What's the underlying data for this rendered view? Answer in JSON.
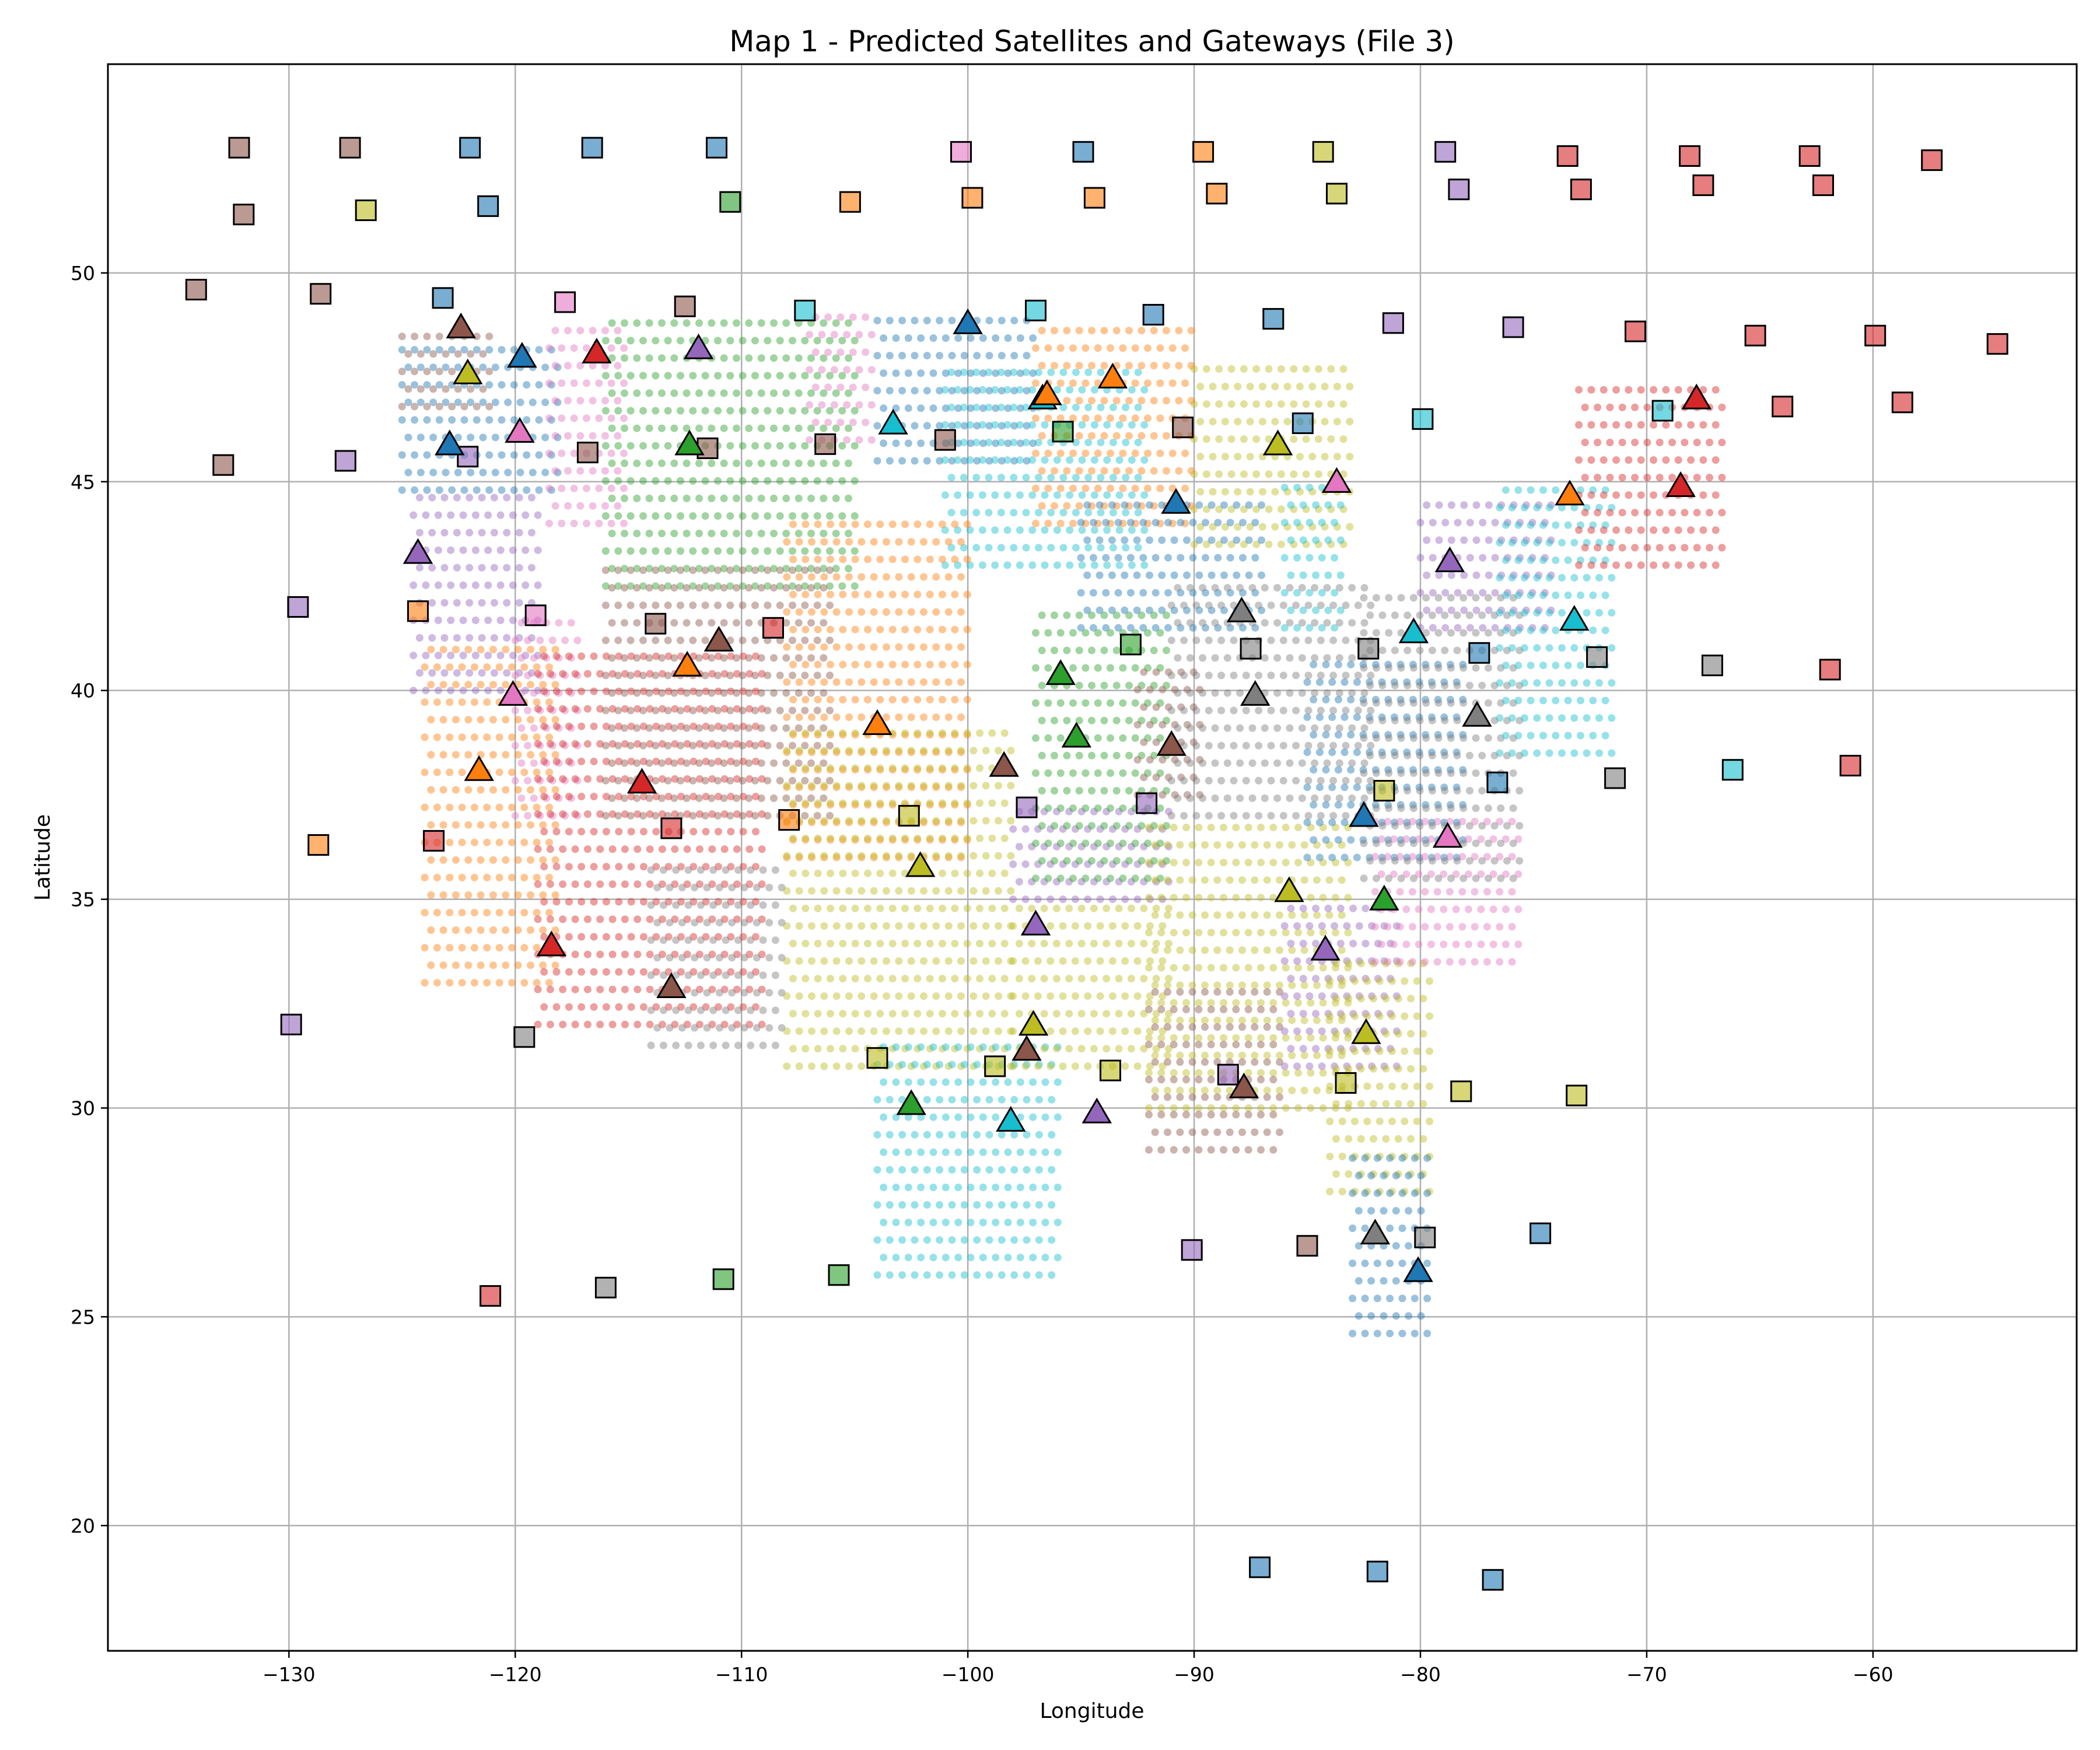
{
  "chart_data": {
    "type": "scatter",
    "title": "Map 1 - Predicted Satellites and Gateways (File 3)",
    "xlabel": "Longitude",
    "ylabel": "Latitude",
    "xlim": [
      -138,
      -51
    ],
    "ylim": [
      17,
      55
    ],
    "xticks": [
      -130,
      -120,
      -110,
      -100,
      -90,
      -80,
      -70,
      -60
    ],
    "yticks": [
      20,
      25,
      30,
      35,
      40,
      45,
      50
    ],
    "grid": true,
    "palette": {
      "blue": "#1f77b4",
      "orange": "#ff7f0e",
      "green": "#2ca02c",
      "red": "#d62728",
      "purple": "#9467bd",
      "brown": "#8c564b",
      "pink": "#e377c2",
      "gray": "#7f7f7f",
      "olive": "#bcbd22",
      "cyan": "#17becf"
    },
    "regions": [
      {
        "c": "brown",
        "lon": [
          -125,
          -121
        ],
        "lat": [
          46.8,
          48.8
        ]
      },
      {
        "c": "blue",
        "lon": [
          -125,
          -118
        ],
        "lat": [
          44.8,
          48.3
        ]
      },
      {
        "c": "pink",
        "lon": [
          -118.5,
          -115
        ],
        "lat": [
          44,
          49
        ]
      },
      {
        "c": "green",
        "lon": [
          -116,
          -105
        ],
        "lat": [
          42.5,
          49
        ]
      },
      {
        "c": "pink",
        "lon": [
          -107,
          -104
        ],
        "lat": [
          46,
          49
        ]
      },
      {
        "c": "blue",
        "lon": [
          -104,
          -97
        ],
        "lat": [
          45.5,
          49
        ]
      },
      {
        "c": "cyan",
        "lon": [
          -101,
          -92
        ],
        "lat": [
          43,
          48
        ]
      },
      {
        "c": "orange",
        "lon": [
          -97,
          -90
        ],
        "lat": [
          44,
          49
        ]
      },
      {
        "c": "olive",
        "lon": [
          -90,
          -83
        ],
        "lat": [
          43.5,
          48
        ]
      },
      {
        "c": "blue",
        "lon": [
          -95,
          -87
        ],
        "lat": [
          41.5,
          44.5
        ]
      },
      {
        "c": "cyan",
        "lon": [
          -86,
          -83.5
        ],
        "lat": [
          41.5,
          45
        ]
      },
      {
        "c": "purple",
        "lon": [
          -124.5,
          -119
        ],
        "lat": [
          40,
          45
        ]
      },
      {
        "c": "pink",
        "lon": [
          -120,
          -117
        ],
        "lat": [
          37,
          42
        ]
      },
      {
        "c": "orange",
        "lon": [
          -124,
          -118
        ],
        "lat": [
          33,
          41
        ]
      },
      {
        "c": "red",
        "lon": [
          -119,
          -109
        ],
        "lat": [
          32,
          41
        ]
      },
      {
        "c": "brown",
        "lon": [
          -116,
          -106
        ],
        "lat": [
          37,
          43
        ]
      },
      {
        "c": "gray",
        "lon": [
          -114,
          -108
        ],
        "lat": [
          31.5,
          36
        ]
      },
      {
        "c": "orange",
        "lon": [
          -108,
          -100
        ],
        "lat": [
          36,
          44
        ]
      },
      {
        "c": "olive",
        "lon": [
          -108,
          -98
        ],
        "lat": [
          31,
          39
        ]
      },
      {
        "c": "cyan",
        "lon": [
          -104,
          -96
        ],
        "lat": [
          26,
          31.5
        ]
      },
      {
        "c": "olive",
        "lon": [
          -98,
          -91
        ],
        "lat": [
          31,
          35
        ]
      },
      {
        "c": "purple",
        "lon": [
          -98,
          -91
        ],
        "lat": [
          35,
          37.5
        ]
      },
      {
        "c": "green",
        "lon": [
          -97,
          -91
        ],
        "lat": [
          35.5,
          42
        ]
      },
      {
        "c": "brown",
        "lon": [
          -92.5,
          -89.5
        ],
        "lat": [
          37.5,
          40.5
        ]
      },
      {
        "c": "gray",
        "lon": [
          -91,
          -82
        ],
        "lat": [
          37,
          42.5
        ]
      },
      {
        "c": "olive",
        "lon": [
          -92,
          -83
        ],
        "lat": [
          30,
          37
        ]
      },
      {
        "c": "brown",
        "lon": [
          -92,
          -86
        ],
        "lat": [
          29,
          33
        ]
      },
      {
        "c": "purple",
        "lon": [
          -86,
          -81
        ],
        "lat": [
          31,
          35
        ]
      },
      {
        "c": "olive",
        "lon": [
          -84,
          -79.5
        ],
        "lat": [
          28,
          33.5
        ]
      },
      {
        "c": "blue",
        "lon": [
          -83,
          -79.5
        ],
        "lat": [
          24.6,
          28.8
        ]
      },
      {
        "c": "blue",
        "lon": [
          -85,
          -78
        ],
        "lat": [
          36,
          41
        ]
      },
      {
        "c": "pink",
        "lon": [
          -82,
          -75.5
        ],
        "lat": [
          33.5,
          37
        ]
      },
      {
        "c": "gray",
        "lon": [
          -82.5,
          -75.5
        ],
        "lat": [
          35.5,
          42.5
        ]
      },
      {
        "c": "purple",
        "lon": [
          -80,
          -74
        ],
        "lat": [
          41.5,
          44.5
        ]
      },
      {
        "c": "cyan",
        "lon": [
          -76.5,
          -71.5
        ],
        "lat": [
          38.5,
          45
        ]
      },
      {
        "c": "red",
        "lon": [
          -73,
          -66.5
        ],
        "lat": [
          43,
          47.5
        ]
      }
    ],
    "satellites": [
      {
        "c": "brown",
        "x": -122.4,
        "y": 48.7
      },
      {
        "c": "olive",
        "x": -122.1,
        "y": 47.6
      },
      {
        "c": "blue",
        "x": -119.7,
        "y": 48
      },
      {
        "c": "red",
        "x": -116.4,
        "y": 48.1
      },
      {
        "c": "purple",
        "x": -111.9,
        "y": 48.2
      },
      {
        "c": "blue",
        "x": -122.9,
        "y": 45.9
      },
      {
        "c": "pink",
        "x": -119.8,
        "y": 46.2
      },
      {
        "c": "green",
        "x": -112.3,
        "y": 45.9
      },
      {
        "c": "blue",
        "x": -100,
        "y": 48.8
      },
      {
        "c": "cyan",
        "x": -103.3,
        "y": 46.4
      },
      {
        "c": "cyan",
        "x": -96.7,
        "y": 47
      },
      {
        "c": "orange",
        "x": -96.5,
        "y": 47.1
      },
      {
        "c": "orange",
        "x": -93.6,
        "y": 47.5
      },
      {
        "c": "blue",
        "x": -90.8,
        "y": 44.5
      },
      {
        "c": "olive",
        "x": -86.3,
        "y": 45.9
      },
      {
        "c": "pink",
        "x": -83.7,
        "y": 45
      },
      {
        "c": "red",
        "x": -67.8,
        "y": 47
      },
      {
        "c": "red",
        "x": -68.5,
        "y": 44.9
      },
      {
        "c": "orange",
        "x": -73.4,
        "y": 44.7
      },
      {
        "c": "purple",
        "x": -124.3,
        "y": 43.3
      },
      {
        "c": "purple",
        "x": -78.7,
        "y": 43.1
      },
      {
        "c": "cyan",
        "x": -73.2,
        "y": 41.7
      },
      {
        "c": "cyan",
        "x": -80.3,
        "y": 41.4
      },
      {
        "c": "gray",
        "x": -87.9,
        "y": 41.9
      },
      {
        "c": "gray",
        "x": -87.3,
        "y": 39.9
      },
      {
        "c": "gray",
        "x": -77.5,
        "y": 39.4
      },
      {
        "c": "brown",
        "x": -111,
        "y": 41.2
      },
      {
        "c": "orange",
        "x": -112.4,
        "y": 40.6
      },
      {
        "c": "pink",
        "x": -120.1,
        "y": 39.9
      },
      {
        "c": "green",
        "x": -95.9,
        "y": 40.4
      },
      {
        "c": "green",
        "x": -95.2,
        "y": 38.9
      },
      {
        "c": "brown",
        "x": -91,
        "y": 38.7
      },
      {
        "c": "orange",
        "x": -104,
        "y": 39.2
      },
      {
        "c": "orange",
        "x": -121.6,
        "y": 38.1
      },
      {
        "c": "red",
        "x": -114.4,
        "y": 37.8
      },
      {
        "c": "brown",
        "x": -98.4,
        "y": 38.2
      },
      {
        "c": "blue",
        "x": -82.5,
        "y": 37
      },
      {
        "c": "pink",
        "x": -78.8,
        "y": 36.5
      },
      {
        "c": "olive",
        "x": -102.1,
        "y": 35.8
      },
      {
        "c": "olive",
        "x": -85.8,
        "y": 35.2
      },
      {
        "c": "green",
        "x": -81.6,
        "y": 35
      },
      {
        "c": "purple",
        "x": -97,
        "y": 34.4
      },
      {
        "c": "purple",
        "x": -84.2,
        "y": 33.8
      },
      {
        "c": "red",
        "x": -118.4,
        "y": 33.9
      },
      {
        "c": "brown",
        "x": -113.1,
        "y": 32.9
      },
      {
        "c": "olive",
        "x": -97.1,
        "y": 32
      },
      {
        "c": "brown",
        "x": -97.4,
        "y": 31.4
      },
      {
        "c": "olive",
        "x": -82.4,
        "y": 31.8
      },
      {
        "c": "green",
        "x": -102.5,
        "y": 30.1
      },
      {
        "c": "cyan",
        "x": -98.1,
        "y": 29.7
      },
      {
        "c": "purple",
        "x": -94.3,
        "y": 29.9
      },
      {
        "c": "brown",
        "x": -87.8,
        "y": 30.5
      },
      {
        "c": "gray",
        "x": -82,
        "y": 27
      },
      {
        "c": "blue",
        "x": -80.1,
        "y": 26.1
      }
    ],
    "gateways": [
      {
        "c": "brown",
        "x": -132.2,
        "y": 53
      },
      {
        "c": "brown",
        "x": -127.3,
        "y": 53
      },
      {
        "c": "blue",
        "x": -122,
        "y": 53
      },
      {
        "c": "blue",
        "x": -116.6,
        "y": 53
      },
      {
        "c": "blue",
        "x": -111.1,
        "y": 53
      },
      {
        "c": "pink",
        "x": -100.3,
        "y": 52.9
      },
      {
        "c": "blue",
        "x": -94.9,
        "y": 52.9
      },
      {
        "c": "orange",
        "x": -89.6,
        "y": 52.9
      },
      {
        "c": "olive",
        "x": -84.3,
        "y": 52.9
      },
      {
        "c": "purple",
        "x": -78.9,
        "y": 52.9
      },
      {
        "c": "red",
        "x": -73.5,
        "y": 52.8
      },
      {
        "c": "red",
        "x": -68.1,
        "y": 52.8
      },
      {
        "c": "red",
        "x": -62.8,
        "y": 52.8
      },
      {
        "c": "red",
        "x": -57.4,
        "y": 52.7
      },
      {
        "c": "brown",
        "x": -132,
        "y": 51.4
      },
      {
        "c": "olive",
        "x": -126.6,
        "y": 51.5
      },
      {
        "c": "blue",
        "x": -121.2,
        "y": 51.6
      },
      {
        "c": "green",
        "x": -110.5,
        "y": 51.7
      },
      {
        "c": "orange",
        "x": -105.2,
        "y": 51.7
      },
      {
        "c": "orange",
        "x": -99.8,
        "y": 51.8
      },
      {
        "c": "orange",
        "x": -94.4,
        "y": 51.8
      },
      {
        "c": "orange",
        "x": -89,
        "y": 51.9
      },
      {
        "c": "olive",
        "x": -83.7,
        "y": 51.9
      },
      {
        "c": "purple",
        "x": -78.3,
        "y": 52
      },
      {
        "c": "red",
        "x": -72.9,
        "y": 52
      },
      {
        "c": "red",
        "x": -67.5,
        "y": 52.1
      },
      {
        "c": "red",
        "x": -62.2,
        "y": 52.1
      },
      {
        "c": "brown",
        "x": -134.1,
        "y": 49.6
      },
      {
        "c": "brown",
        "x": -128.6,
        "y": 49.5
      },
      {
        "c": "blue",
        "x": -123.2,
        "y": 49.4
      },
      {
        "c": "pink",
        "x": -117.8,
        "y": 49.3
      },
      {
        "c": "brown",
        "x": -112.5,
        "y": 49.2
      },
      {
        "c": "cyan",
        "x": -107.2,
        "y": 49.1
      },
      {
        "c": "cyan",
        "x": -97,
        "y": 49.1
      },
      {
        "c": "blue",
        "x": -91.8,
        "y": 49
      },
      {
        "c": "blue",
        "x": -86.5,
        "y": 48.9
      },
      {
        "c": "purple",
        "x": -81.2,
        "y": 48.8
      },
      {
        "c": "purple",
        "x": -75.9,
        "y": 48.7
      },
      {
        "c": "red",
        "x": -70.5,
        "y": 48.6
      },
      {
        "c": "red",
        "x": -65.2,
        "y": 48.5
      },
      {
        "c": "red",
        "x": -59.9,
        "y": 48.5
      },
      {
        "c": "red",
        "x": -54.5,
        "y": 48.3
      },
      {
        "c": "brown",
        "x": -132.9,
        "y": 45.4
      },
      {
        "c": "purple",
        "x": -127.5,
        "y": 45.5
      },
      {
        "c": "purple",
        "x": -122.1,
        "y": 45.6
      },
      {
        "c": "brown",
        "x": -116.8,
        "y": 45.7
      },
      {
        "c": "brown",
        "x": -111.5,
        "y": 45.8
      },
      {
        "c": "brown",
        "x": -106.3,
        "y": 45.9
      },
      {
        "c": "brown",
        "x": -101,
        "y": 46
      },
      {
        "c": "green",
        "x": -95.8,
        "y": 46.2
      },
      {
        "c": "brown",
        "x": -90.5,
        "y": 46.3
      },
      {
        "c": "blue",
        "x": -85.2,
        "y": 46.4
      },
      {
        "c": "cyan",
        "x": -79.9,
        "y": 46.5
      },
      {
        "c": "cyan",
        "x": -69.3,
        "y": 46.7
      },
      {
        "c": "red",
        "x": -64,
        "y": 46.8
      },
      {
        "c": "red",
        "x": -58.7,
        "y": 46.9
      },
      {
        "c": "purple",
        "x": -129.6,
        "y": 42
      },
      {
        "c": "orange",
        "x": -124.3,
        "y": 41.9
      },
      {
        "c": "pink",
        "x": -119.1,
        "y": 41.8
      },
      {
        "c": "brown",
        "x": -113.8,
        "y": 41.6
      },
      {
        "c": "red",
        "x": -108.6,
        "y": 41.5
      },
      {
        "c": "green",
        "x": -92.8,
        "y": 41.1
      },
      {
        "c": "gray",
        "x": -87.5,
        "y": 41
      },
      {
        "c": "gray",
        "x": -82.3,
        "y": 41
      },
      {
        "c": "blue",
        "x": -77.4,
        "y": 40.9
      },
      {
        "c": "gray",
        "x": -72.2,
        "y": 40.8
      },
      {
        "c": "gray",
        "x": -67.1,
        "y": 40.6
      },
      {
        "c": "red",
        "x": -61.9,
        "y": 40.5
      },
      {
        "c": "orange",
        "x": -128.7,
        "y": 36.3
      },
      {
        "c": "red",
        "x": -123.6,
        "y": 36.4
      },
      {
        "c": "red",
        "x": -113.1,
        "y": 36.7
      },
      {
        "c": "orange",
        "x": -107.9,
        "y": 36.9
      },
      {
        "c": "olive",
        "x": -102.6,
        "y": 37
      },
      {
        "c": "purple",
        "x": -97.4,
        "y": 37.2
      },
      {
        "c": "purple",
        "x": -92.1,
        "y": 37.3
      },
      {
        "c": "olive",
        "x": -81.6,
        "y": 37.6
      },
      {
        "c": "blue",
        "x": -76.6,
        "y": 37.8
      },
      {
        "c": "gray",
        "x": -71.4,
        "y": 37.9
      },
      {
        "c": "cyan",
        "x": -66.2,
        "y": 38.1
      },
      {
        "c": "red",
        "x": -61,
        "y": 38.2
      },
      {
        "c": "purple",
        "x": -129.9,
        "y": 32
      },
      {
        "c": "gray",
        "x": -119.6,
        "y": 31.7
      },
      {
        "c": "olive",
        "x": -104,
        "y": 31.2
      },
      {
        "c": "olive",
        "x": -98.8,
        "y": 31
      },
      {
        "c": "olive",
        "x": -93.7,
        "y": 30.9
      },
      {
        "c": "purple",
        "x": -88.5,
        "y": 30.8
      },
      {
        "c": "olive",
        "x": -83.3,
        "y": 30.6
      },
      {
        "c": "olive",
        "x": -78.2,
        "y": 30.4
      },
      {
        "c": "olive",
        "x": -73.1,
        "y": 30.3
      },
      {
        "c": "red",
        "x": -121.1,
        "y": 25.5
      },
      {
        "c": "gray",
        "x": -116,
        "y": 25.7
      },
      {
        "c": "green",
        "x": -110.8,
        "y": 25.9
      },
      {
        "c": "green",
        "x": -105.7,
        "y": 26
      },
      {
        "c": "purple",
        "x": -90.1,
        "y": 26.6
      },
      {
        "c": "brown",
        "x": -85,
        "y": 26.7
      },
      {
        "c": "gray",
        "x": -79.8,
        "y": 26.9
      },
      {
        "c": "blue",
        "x": -74.7,
        "y": 27
      },
      {
        "c": "blue",
        "x": -87.1,
        "y": 19
      },
      {
        "c": "blue",
        "x": -81.9,
        "y": 18.9
      },
      {
        "c": "blue",
        "x": -76.8,
        "y": 18.7
      }
    ]
  }
}
